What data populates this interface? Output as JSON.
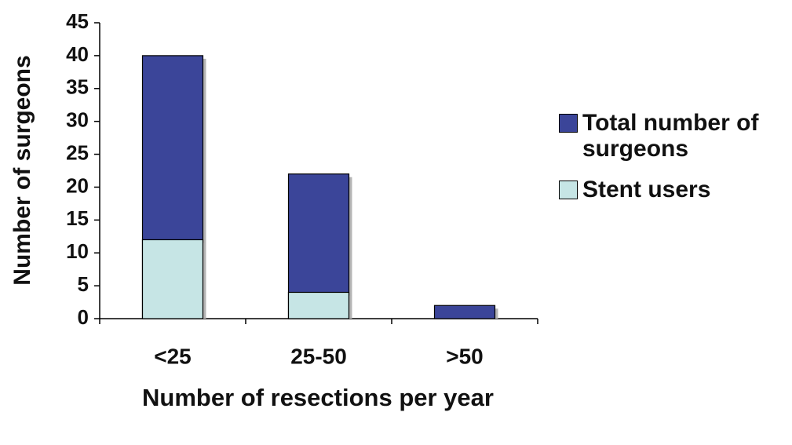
{
  "chart_data": {
    "type": "bar",
    "y_label": "Number of surgeons",
    "x_label": "Number of resections per year",
    "categories": [
      "<25",
      "25-50",
      ">50"
    ],
    "series": [
      {
        "name": "Total number of surgeons",
        "color": "#3b4599",
        "values": [
          40,
          22,
          2
        ]
      },
      {
        "name": "Stent users",
        "color": "#c6e5e5",
        "values": [
          12,
          4,
          0
        ]
      }
    ],
    "ylim": [
      0,
      45
    ],
    "yticks": [
      0,
      5,
      10,
      15,
      20,
      25,
      30,
      35,
      40,
      45
    ],
    "legend": "right"
  }
}
